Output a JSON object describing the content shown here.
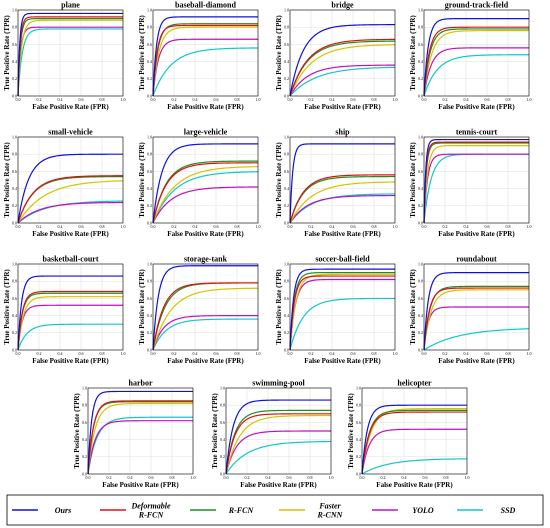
{
  "colors": {
    "Ours": "#1010d8",
    "Deformable R-FCN": "#e01010",
    "R-FCN": "#1e8f1e",
    "Faster R-CNN": "#d4c400",
    "YOLO": "#c010c0",
    "SSD": "#10c8cc"
  },
  "legend": [
    {
      "key": "Ours",
      "lines": [
        "Ours"
      ]
    },
    {
      "key": "Deformable R-FCN",
      "lines": [
        "Deformable",
        "R-FCN"
      ]
    },
    {
      "key": "R-FCN",
      "lines": [
        "R-FCN"
      ]
    },
    {
      "key": "Faster R-CNN",
      "lines": [
        "Faster",
        "R-CNN"
      ]
    },
    {
      "key": "YOLO",
      "lines": [
        "YOLO"
      ]
    },
    {
      "key": "SSD",
      "lines": [
        "SSD"
      ]
    }
  ],
  "chart_data": [
    {
      "type": "line",
      "title": "plane",
      "xlabel": "False Positive Rate (FPR)",
      "ylabel": "True Positive Rate (TPR)",
      "xlim": [
        0,
        1
      ],
      "ylim": [
        0,
        1
      ],
      "x_ticks": [
        "0.0",
        "0.2",
        "0.4",
        "0.6",
        "0.8",
        "1.0"
      ],
      "y_ticks": [
        "0.0",
        "0.2",
        "0.4",
        "0.6",
        "0.8",
        "1.0"
      ],
      "grid": true,
      "series": [
        {
          "name": "Ours",
          "final": 0.96,
          "k": 60
        },
        {
          "name": "Deformable R-FCN",
          "final": 0.92,
          "k": 50
        },
        {
          "name": "R-FCN",
          "final": 0.9,
          "k": 45
        },
        {
          "name": "Faster R-CNN",
          "final": 0.88,
          "k": 30
        },
        {
          "name": "YOLO",
          "final": 0.8,
          "k": 40
        },
        {
          "name": "SSD",
          "final": 0.78,
          "k": 25
        }
      ]
    },
    {
      "type": "line",
      "title": "baseball-diamond",
      "xlabel": "False Positive Rate (FPR)",
      "ylabel": "True Positive Rate (TPR)",
      "xlim": [
        0,
        1
      ],
      "ylim": [
        0,
        1
      ],
      "x_ticks": [
        "0.0",
        "0.2",
        "0.4",
        "0.6",
        "0.8",
        "1.0"
      ],
      "y_ticks": [
        "0.0",
        "0.2",
        "0.4",
        "0.6",
        "0.8",
        "1.0"
      ],
      "grid": true,
      "series": [
        {
          "name": "Ours",
          "final": 0.92,
          "k": 30
        },
        {
          "name": "Deformable R-FCN",
          "final": 0.82,
          "k": 25
        },
        {
          "name": "R-FCN",
          "final": 0.84,
          "k": 22
        },
        {
          "name": "Faster R-CNN",
          "final": 0.8,
          "k": 18
        },
        {
          "name": "YOLO",
          "final": 0.66,
          "k": 20
        },
        {
          "name": "SSD",
          "final": 0.56,
          "k": 6
        }
      ]
    },
    {
      "type": "line",
      "title": "bridge",
      "xlabel": "False Positive Rate (FPR)",
      "ylabel": "True Positive Rate (TPR)",
      "xlim": [
        0,
        1
      ],
      "ylim": [
        0,
        1
      ],
      "x_ticks": [
        "0.0",
        "0.2",
        "0.4",
        "0.6",
        "0.8",
        "1.0"
      ],
      "y_ticks": [
        "0.0",
        "0.2",
        "0.4",
        "0.6",
        "0.8",
        "1.0"
      ],
      "grid": true,
      "series": [
        {
          "name": "Ours",
          "final": 0.83,
          "k": 8
        },
        {
          "name": "Deformable R-FCN",
          "final": 0.66,
          "k": 6
        },
        {
          "name": "R-FCN",
          "final": 0.64,
          "k": 6
        },
        {
          "name": "Faster R-CNN",
          "final": 0.6,
          "k": 5
        },
        {
          "name": "YOLO",
          "final": 0.36,
          "k": 6
        },
        {
          "name": "SSD",
          "final": 0.34,
          "k": 4
        }
      ]
    },
    {
      "type": "line",
      "title": "ground-track-field",
      "xlabel": "False Positive Rate (FPR)",
      "ylabel": "True Positive Rate (TPR)",
      "xlim": [
        0,
        1
      ],
      "ylim": [
        0,
        1
      ],
      "x_ticks": [
        "0.0",
        "0.2",
        "0.4",
        "0.6",
        "0.8",
        "1.0"
      ],
      "y_ticks": [
        "0.0",
        "0.2",
        "0.4",
        "0.6",
        "0.8",
        "1.0"
      ],
      "grid": true,
      "series": [
        {
          "name": "Ours",
          "final": 0.9,
          "k": 25
        },
        {
          "name": "Deformable R-FCN",
          "final": 0.8,
          "k": 20
        },
        {
          "name": "R-FCN",
          "final": 0.78,
          "k": 18
        },
        {
          "name": "Faster R-CNN",
          "final": 0.76,
          "k": 14
        },
        {
          "name": "YOLO",
          "final": 0.56,
          "k": 15
        },
        {
          "name": "SSD",
          "final": 0.48,
          "k": 8
        }
      ]
    },
    {
      "type": "line",
      "title": "small-vehicle",
      "xlabel": "False Positive Rate (FPR)",
      "ylabel": "True Positive Rate (TPR)",
      "xlim": [
        0,
        1
      ],
      "ylim": [
        0,
        1
      ],
      "x_ticks": [
        "0.0",
        "0.2",
        "0.4",
        "0.6",
        "0.8",
        "1.0"
      ],
      "y_ticks": [
        "0.0",
        "0.2",
        "0.4",
        "0.6",
        "0.8",
        "1.0"
      ],
      "grid": true,
      "series": [
        {
          "name": "Ours",
          "final": 0.8,
          "k": 10
        },
        {
          "name": "Deformable R-FCN",
          "final": 0.55,
          "k": 7
        },
        {
          "name": "R-FCN",
          "final": 0.54,
          "k": 7
        },
        {
          "name": "Faster R-CNN",
          "final": 0.5,
          "k": 4
        },
        {
          "name": "YOLO",
          "final": 0.24,
          "k": 5
        },
        {
          "name": "SSD",
          "final": 0.26,
          "k": 4
        }
      ]
    },
    {
      "type": "line",
      "title": "large-vehicle",
      "xlabel": "False Positive Rate (FPR)",
      "ylabel": "True Positive Rate (TPR)",
      "xlim": [
        0,
        1
      ],
      "ylim": [
        0,
        1
      ],
      "x_ticks": [
        "0.0",
        "0.2",
        "0.4",
        "0.6",
        "0.8",
        "1.0"
      ],
      "y_ticks": [
        "0.0",
        "0.2",
        "0.4",
        "0.6",
        "0.8",
        "1.0"
      ],
      "grid": true,
      "series": [
        {
          "name": "Ours",
          "final": 0.92,
          "k": 12
        },
        {
          "name": "Deformable R-FCN",
          "final": 0.7,
          "k": 8
        },
        {
          "name": "R-FCN",
          "final": 0.72,
          "k": 8
        },
        {
          "name": "Faster R-CNN",
          "final": 0.66,
          "k": 5
        },
        {
          "name": "YOLO",
          "final": 0.42,
          "k": 6
        },
        {
          "name": "SSD",
          "final": 0.6,
          "k": 5
        }
      ]
    },
    {
      "type": "line",
      "title": "ship",
      "xlabel": "False Positive Rate (FPR)",
      "ylabel": "True Positive Rate (TPR)",
      "xlim": [
        0,
        1
      ],
      "ylim": [
        0,
        1
      ],
      "x_ticks": [
        "0.0",
        "0.2",
        "0.4",
        "0.6",
        "0.8",
        "1.0"
      ],
      "y_ticks": [
        "0.0",
        "0.2",
        "0.4",
        "0.6",
        "0.8",
        "1.0"
      ],
      "grid": true,
      "series": [
        {
          "name": "Ours",
          "final": 0.92,
          "k": 40
        },
        {
          "name": "Deformable R-FCN",
          "final": 0.56,
          "k": 8
        },
        {
          "name": "R-FCN",
          "final": 0.54,
          "k": 8
        },
        {
          "name": "Faster R-CNN",
          "final": 0.48,
          "k": 5
        },
        {
          "name": "YOLO",
          "final": 0.32,
          "k": 6
        },
        {
          "name": "SSD",
          "final": 0.34,
          "k": 5
        }
      ]
    },
    {
      "type": "line",
      "title": "tennis-court",
      "xlabel": "False Positive Rate (FPR)",
      "ylabel": "True Positive Rate (TPR)",
      "xlim": [
        0,
        1
      ],
      "ylim": [
        0,
        1
      ],
      "x_ticks": [
        "0.0",
        "0.2",
        "0.4",
        "0.6",
        "0.8",
        "1.0"
      ],
      "y_ticks": [
        "0.0",
        "0.2",
        "0.4",
        "0.6",
        "0.8",
        "1.0"
      ],
      "grid": true,
      "series": [
        {
          "name": "Ours",
          "final": 0.97,
          "k": 60
        },
        {
          "name": "Deformable R-FCN",
          "final": 0.94,
          "k": 50
        },
        {
          "name": "R-FCN",
          "final": 0.93,
          "k": 45
        },
        {
          "name": "Faster R-CNN",
          "final": 0.9,
          "k": 30
        },
        {
          "name": "YOLO",
          "final": 0.8,
          "k": 30
        },
        {
          "name": "SSD",
          "final": 0.8,
          "k": 15
        }
      ]
    },
    {
      "type": "line",
      "title": "basketball-court",
      "xlabel": "False Positive Rate (FPR)",
      "ylabel": "True Positive Rate (TPR)",
      "xlim": [
        0,
        1
      ],
      "ylim": [
        0,
        1
      ],
      "x_ticks": [
        "0.0",
        "0.2",
        "0.4",
        "0.6",
        "0.8",
        "1.0"
      ],
      "y_ticks": [
        "0.0",
        "0.2",
        "0.4",
        "0.6",
        "0.8",
        "1.0"
      ],
      "grid": true,
      "series": [
        {
          "name": "Ours",
          "final": 0.86,
          "k": 30
        },
        {
          "name": "Deformable R-FCN",
          "final": 0.68,
          "k": 25
        },
        {
          "name": "R-FCN",
          "final": 0.66,
          "k": 25
        },
        {
          "name": "Faster R-CNN",
          "final": 0.62,
          "k": 20
        },
        {
          "name": "YOLO",
          "final": 0.52,
          "k": 25
        },
        {
          "name": "SSD",
          "final": 0.3,
          "k": 12
        }
      ]
    },
    {
      "type": "line",
      "title": "storage-tank",
      "xlabel": "False Positive Rate (FPR)",
      "ylabel": "True Positive Rate (TPR)",
      "xlim": [
        0,
        1
      ],
      "ylim": [
        0,
        1
      ],
      "x_ticks": [
        "0.0",
        "0.2",
        "0.4",
        "0.6",
        "0.8",
        "1.0"
      ],
      "y_ticks": [
        "0.0",
        "0.2",
        "0.4",
        "0.6",
        "0.8",
        "1.0"
      ],
      "grid": true,
      "series": [
        {
          "name": "Ours",
          "final": 0.98,
          "k": 20
        },
        {
          "name": "Deformable R-FCN",
          "final": 0.78,
          "k": 10
        },
        {
          "name": "R-FCN",
          "final": 0.78,
          "k": 9
        },
        {
          "name": "Faster R-CNN",
          "final": 0.72,
          "k": 6
        },
        {
          "name": "YOLO",
          "final": 0.4,
          "k": 10
        },
        {
          "name": "SSD",
          "final": 0.36,
          "k": 8
        }
      ]
    },
    {
      "type": "line",
      "title": "soccer-ball-field",
      "xlabel": "False Positive Rate (FPR)",
      "ylabel": "True Positive Rate (TPR)",
      "xlim": [
        0,
        1
      ],
      "ylim": [
        0,
        1
      ],
      "x_ticks": [
        "0.0",
        "0.2",
        "0.4",
        "0.6",
        "0.8",
        "1.0"
      ],
      "y_ticks": [
        "0.0",
        "0.2",
        "0.4",
        "0.6",
        "0.8",
        "1.0"
      ],
      "grid": true,
      "series": [
        {
          "name": "Ours",
          "final": 0.94,
          "k": 30
        },
        {
          "name": "Deformable R-FCN",
          "final": 0.86,
          "k": 25
        },
        {
          "name": "R-FCN",
          "final": 0.9,
          "k": 25
        },
        {
          "name": "Faster R-CNN",
          "final": 0.88,
          "k": 18
        },
        {
          "name": "YOLO",
          "final": 0.82,
          "k": 20
        },
        {
          "name": "SSD",
          "final": 0.6,
          "k": 8
        }
      ]
    },
    {
      "type": "line",
      "title": "roundabout",
      "xlabel": "False Positive Rate (FPR)",
      "ylabel": "True Positive Rate (TPR)",
      "xlim": [
        0,
        1
      ],
      "ylim": [
        0,
        1
      ],
      "x_ticks": [
        "0.0",
        "0.2",
        "0.4",
        "0.6",
        "0.8",
        "1.0"
      ],
      "y_ticks": [
        "0.0",
        "0.2",
        "0.4",
        "0.6",
        "0.8",
        "1.0"
      ],
      "grid": true,
      "series": [
        {
          "name": "Ours",
          "final": 0.9,
          "k": 25
        },
        {
          "name": "Deformable R-FCN",
          "final": 0.72,
          "k": 20
        },
        {
          "name": "R-FCN",
          "final": 0.74,
          "k": 18
        },
        {
          "name": "Faster R-CNN",
          "final": 0.7,
          "k": 15
        },
        {
          "name": "YOLO",
          "final": 0.5,
          "k": 25
        },
        {
          "name": "SSD",
          "final": 0.26,
          "k": 3
        }
      ]
    },
    {
      "type": "line",
      "title": "harbor",
      "xlabel": "False Positive Rate (FPR)",
      "ylabel": "True Positive Rate (TPR)",
      "xlim": [
        0,
        1
      ],
      "ylim": [
        0,
        1
      ],
      "x_ticks": [
        "0.0",
        "0.2",
        "0.4",
        "0.6",
        "0.8",
        "1.0"
      ],
      "y_ticks": [
        "0.0",
        "0.2",
        "0.4",
        "0.6",
        "0.8",
        "1.0"
      ],
      "grid": true,
      "series": [
        {
          "name": "Ours",
          "final": 0.96,
          "k": 30
        },
        {
          "name": "Deformable R-FCN",
          "final": 0.85,
          "k": 20
        },
        {
          "name": "R-FCN",
          "final": 0.84,
          "k": 20
        },
        {
          "name": "Faster R-CNN",
          "final": 0.82,
          "k": 15
        },
        {
          "name": "YOLO",
          "final": 0.62,
          "k": 15
        },
        {
          "name": "SSD",
          "final": 0.66,
          "k": 12
        }
      ]
    },
    {
      "type": "line",
      "title": "swimming-pool",
      "xlabel": "False Positive Rate (FPR)",
      "ylabel": "True Positive Rate (TPR)",
      "xlim": [
        0,
        1
      ],
      "ylim": [
        0,
        1
      ],
      "x_ticks": [
        "0.0",
        "0.2",
        "0.4",
        "0.6",
        "0.8",
        "1.0"
      ],
      "y_ticks": [
        "0.0",
        "0.2",
        "0.4",
        "0.6",
        "0.8",
        "1.0"
      ],
      "grid": true,
      "series": [
        {
          "name": "Ours",
          "final": 0.86,
          "k": 15
        },
        {
          "name": "Deformable R-FCN",
          "final": 0.7,
          "k": 12
        },
        {
          "name": "R-FCN",
          "final": 0.74,
          "k": 12
        },
        {
          "name": "Faster R-CNN",
          "final": 0.68,
          "k": 8
        },
        {
          "name": "YOLO",
          "final": 0.5,
          "k": 10
        },
        {
          "name": "SSD",
          "final": 0.38,
          "k": 5
        }
      ]
    },
    {
      "type": "line",
      "title": "helicopter",
      "xlabel": "False Positive Rate (FPR)",
      "ylabel": "True Positive Rate (TPR)",
      "xlim": [
        0,
        1
      ],
      "ylim": [
        0,
        1
      ],
      "x_ticks": [
        "0.0",
        "0.2",
        "0.4",
        "0.6",
        "0.8",
        "1.0"
      ],
      "y_ticks": [
        "0.0",
        "0.2",
        "0.4",
        "0.6",
        "0.8",
        "1.0"
      ],
      "grid": true,
      "series": [
        {
          "name": "Ours",
          "final": 0.8,
          "k": 20
        },
        {
          "name": "Deformable R-FCN",
          "final": 0.72,
          "k": 15
        },
        {
          "name": "R-FCN",
          "final": 0.74,
          "k": 15
        },
        {
          "name": "Faster R-CNN",
          "final": 0.76,
          "k": 12
        },
        {
          "name": "YOLO",
          "final": 0.52,
          "k": 15
        },
        {
          "name": "SSD",
          "final": 0.18,
          "k": 4
        }
      ]
    }
  ]
}
